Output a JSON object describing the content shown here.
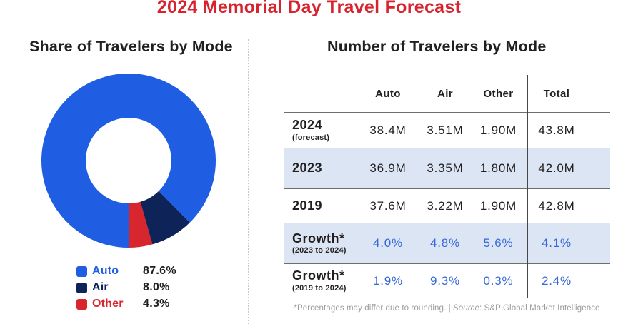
{
  "title": "2024 Memorial Day Travel Forecast",
  "left_panel": {
    "heading": "Share of Travelers by Mode",
    "legend": [
      {
        "label": "Auto",
        "value": "87.6%",
        "color": "#1f5de3"
      },
      {
        "label": "Air",
        "value": "8.0%",
        "color": "#0e2357"
      },
      {
        "label": "Other",
        "value": "4.3%",
        "color": "#d7262d"
      }
    ]
  },
  "right_panel": {
    "heading": "Number of Travelers by Mode",
    "table": {
      "columns": [
        "",
        "Auto",
        "Air",
        "Other",
        "Total"
      ],
      "rows": [
        {
          "label": "2024",
          "sublabel": "(forecast)",
          "values": [
            "38.4M",
            "3.51M",
            "1.90M",
            "43.8M"
          ],
          "highlight": false,
          "value_style": "dark"
        },
        {
          "label": "2023",
          "sublabel": "",
          "values": [
            "36.9M",
            "3.35M",
            "1.80M",
            "42.0M"
          ],
          "highlight": true,
          "value_style": "dark"
        },
        {
          "label": "2019",
          "sublabel": "",
          "values": [
            "37.6M",
            "3.22M",
            "1.90M",
            "42.8M"
          ],
          "highlight": false,
          "value_style": "dark"
        },
        {
          "label": "Growth*",
          "sublabel": "(2023 to 2024)",
          "values": [
            "4.0%",
            "4.8%",
            "5.6%",
            "4.1%"
          ],
          "highlight": true,
          "value_style": "blue"
        },
        {
          "label": "Growth*",
          "sublabel": "(2019 to 2024)",
          "values": [
            "1.9%",
            "9.3%",
            "0.3%",
            "2.4%"
          ],
          "highlight": false,
          "value_style": "blue"
        }
      ]
    },
    "footnote": {
      "pre": "*Percentages may differ due to rounding. | ",
      "source_word": "Source",
      "post": ": S&P Global Market Intelligence"
    }
  },
  "chart_data": [
    {
      "type": "pie",
      "donut": true,
      "title": "Share of Travelers by Mode",
      "labels": [
        "Auto",
        "Air",
        "Other"
      ],
      "values": [
        87.6,
        8.0,
        4.3
      ],
      "colors": [
        "#1f5de3",
        "#0e2357",
        "#d7262d"
      ],
      "start_angle": "bottom",
      "direction": "clockwise",
      "legend_position": "bottom-left"
    },
    {
      "type": "table",
      "title": "Number of Travelers by Mode",
      "columns": [
        "",
        "Auto",
        "Air",
        "Other",
        "Total"
      ],
      "rows": [
        [
          "2024 (forecast)",
          "38.4M",
          "3.51M",
          "1.90M",
          "43.8M"
        ],
        [
          "2023",
          "36.9M",
          "3.35M",
          "1.80M",
          "42.0M"
        ],
        [
          "2019",
          "37.6M",
          "3.22M",
          "1.90M",
          "42.8M"
        ],
        [
          "Growth* (2023 to 2024)",
          "4.0%",
          "4.8%",
          "5.6%",
          "4.1%"
        ],
        [
          "Growth* (2019 to 2024)",
          "1.9%",
          "9.3%",
          "0.3%",
          "2.4%"
        ]
      ]
    }
  ],
  "colors": {
    "title_red": "#d7232e",
    "text_dark": "#231f20",
    "row_highlight": "#dbe5f4",
    "growth_value_blue": "#3568d9",
    "footnote_gray": "#9b9b9b",
    "grid_line": "#6e6e6e",
    "total_divider": "#474747",
    "dotted_divider": "#c6c6c6"
  }
}
